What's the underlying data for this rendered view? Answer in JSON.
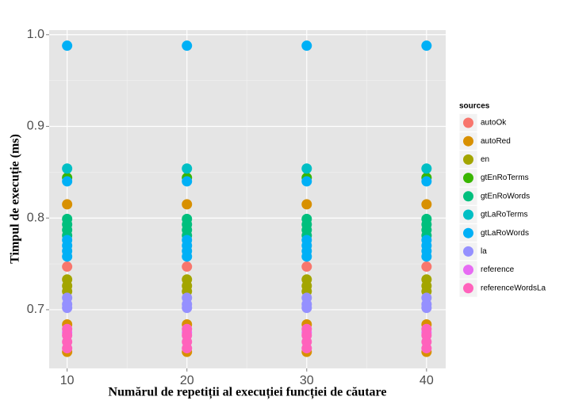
{
  "chart_data": {
    "type": "scatter",
    "x_label": "Numărul de repetiții al execuției funcției de căutare",
    "y_label": "Timpul de execuție (ms)",
    "legend_title": "sources",
    "legend_position": "right",
    "grid": true,
    "xlim": [
      8.5,
      41.6
    ],
    "xticks": [
      10,
      20,
      30,
      40
    ],
    "ylim": [
      0.636,
      1.005
    ],
    "yticks": [
      0.7,
      0.8,
      0.9,
      {
        "value": 1,
        "label": "1.0"
      }
    ],
    "series": [
      {
        "name": "autoOk",
        "color": "#F8766D",
        "x": [
          10,
          20,
          30,
          40
        ],
        "values": [
          0.747,
          0.747,
          0.747,
          0.747
        ]
      },
      {
        "name": "autoRed",
        "color": "#D89000",
        "x": [
          10,
          20,
          30,
          40,
          10,
          20,
          30,
          40,
          10,
          20,
          30,
          40
        ],
        "values": [
          0.815,
          0.815,
          0.815,
          0.815,
          0.684,
          0.684,
          0.684,
          0.684,
          0.654,
          0.654,
          0.654,
          0.654
        ]
      },
      {
        "name": "en",
        "color": "#A3A500",
        "x": [
          10,
          20,
          30,
          40,
          10,
          20,
          30,
          40,
          10,
          20,
          30,
          40
        ],
        "values": [
          0.733,
          0.733,
          0.733,
          0.733,
          0.726,
          0.726,
          0.726,
          0.726,
          0.72,
          0.72,
          0.72,
          0.72
        ]
      },
      {
        "name": "gtEnRoTerms",
        "color": "#39B600",
        "x": [
          10,
          20,
          30,
          40
        ],
        "values": [
          0.844,
          0.844,
          0.844,
          0.844
        ]
      },
      {
        "name": "gtEnRoWords",
        "color": "#00BF7D",
        "x": [
          10,
          20,
          30,
          40,
          10,
          20,
          30,
          40,
          10,
          20,
          30,
          40,
          10,
          20,
          30,
          40
        ],
        "values": [
          0.799,
          0.799,
          0.799,
          0.799,
          0.793,
          0.793,
          0.793,
          0.793,
          0.787,
          0.787,
          0.787,
          0.787,
          0.781,
          0.781,
          0.781,
          0.781
        ]
      },
      {
        "name": "gtLaRoTerms",
        "color": "#00BFC4",
        "x": [
          10,
          20,
          30,
          40
        ],
        "values": [
          0.854,
          0.854,
          0.854,
          0.854
        ]
      },
      {
        "name": "gtLaRoWords",
        "color": "#00B0F6",
        "x": [
          10,
          20,
          30,
          40,
          10,
          20,
          30,
          40,
          10,
          20,
          30,
          40,
          10,
          20,
          30,
          40,
          10,
          20,
          30,
          40,
          10,
          20,
          30,
          40
        ],
        "values": [
          0.988,
          0.988,
          0.988,
          0.988,
          0.84,
          0.84,
          0.84,
          0.84,
          0.776,
          0.776,
          0.776,
          0.776,
          0.77,
          0.77,
          0.77,
          0.77,
          0.764,
          0.764,
          0.764,
          0.764,
          0.758,
          0.758,
          0.758,
          0.758
        ]
      },
      {
        "name": "la",
        "color": "#9590FF",
        "x": [
          10,
          20,
          30,
          40,
          10,
          20,
          30,
          40,
          10,
          20,
          30,
          40
        ],
        "values": [
          0.713,
          0.713,
          0.713,
          0.713,
          0.706,
          0.706,
          0.706,
          0.706,
          0.702,
          0.702,
          0.702,
          0.702
        ]
      },
      {
        "name": "reference",
        "color": "#E76BF3",
        "x": [
          10,
          20,
          30,
          40
        ],
        "values": [
          0.675,
          0.675,
          0.675,
          0.675
        ]
      },
      {
        "name": "referenceWordsLa",
        "color": "#FF62BC",
        "x": [
          10,
          20,
          30,
          40,
          10,
          20,
          30,
          40,
          10,
          20,
          30,
          40,
          10,
          20,
          30,
          40
        ],
        "values": [
          0.679,
          0.679,
          0.679,
          0.679,
          0.672,
          0.672,
          0.672,
          0.672,
          0.665,
          0.665,
          0.665,
          0.665,
          0.658,
          0.658,
          0.658,
          0.658
        ]
      }
    ]
  }
}
